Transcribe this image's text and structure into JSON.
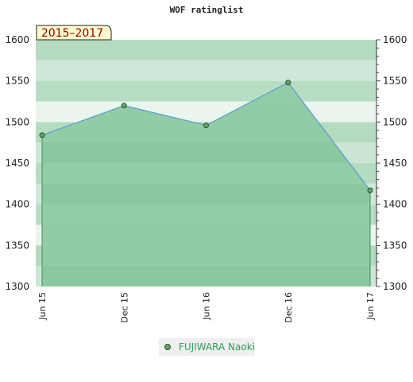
{
  "chart_data": {
    "type": "area",
    "title": "WOF ratinglist",
    "period_label": "2015–2017",
    "categories": [
      "Jun 15",
      "Dec 15",
      "Jun 16",
      "Dec 16",
      "Jun 17"
    ],
    "series": [
      {
        "name": "FUJIWARA Naoki",
        "values": [
          1484,
          1520,
          1496,
          1548,
          1417
        ]
      }
    ],
    "ylim": [
      1300,
      1600
    ],
    "yticks": [
      1300,
      1350,
      1400,
      1450,
      1500,
      1550,
      1600
    ],
    "y_axis_sides": [
      "left",
      "right"
    ],
    "grid": true,
    "legend_position": "bottom-center",
    "colors": {
      "line": "#5b9bd5",
      "marker_fill": "#5fa868",
      "marker_stroke": "#2d4a2d",
      "fill": "#7fc596",
      "legend_bg": "#efefef",
      "badge_bg": "#fffacd",
      "badge_text": "#8b0000"
    }
  }
}
